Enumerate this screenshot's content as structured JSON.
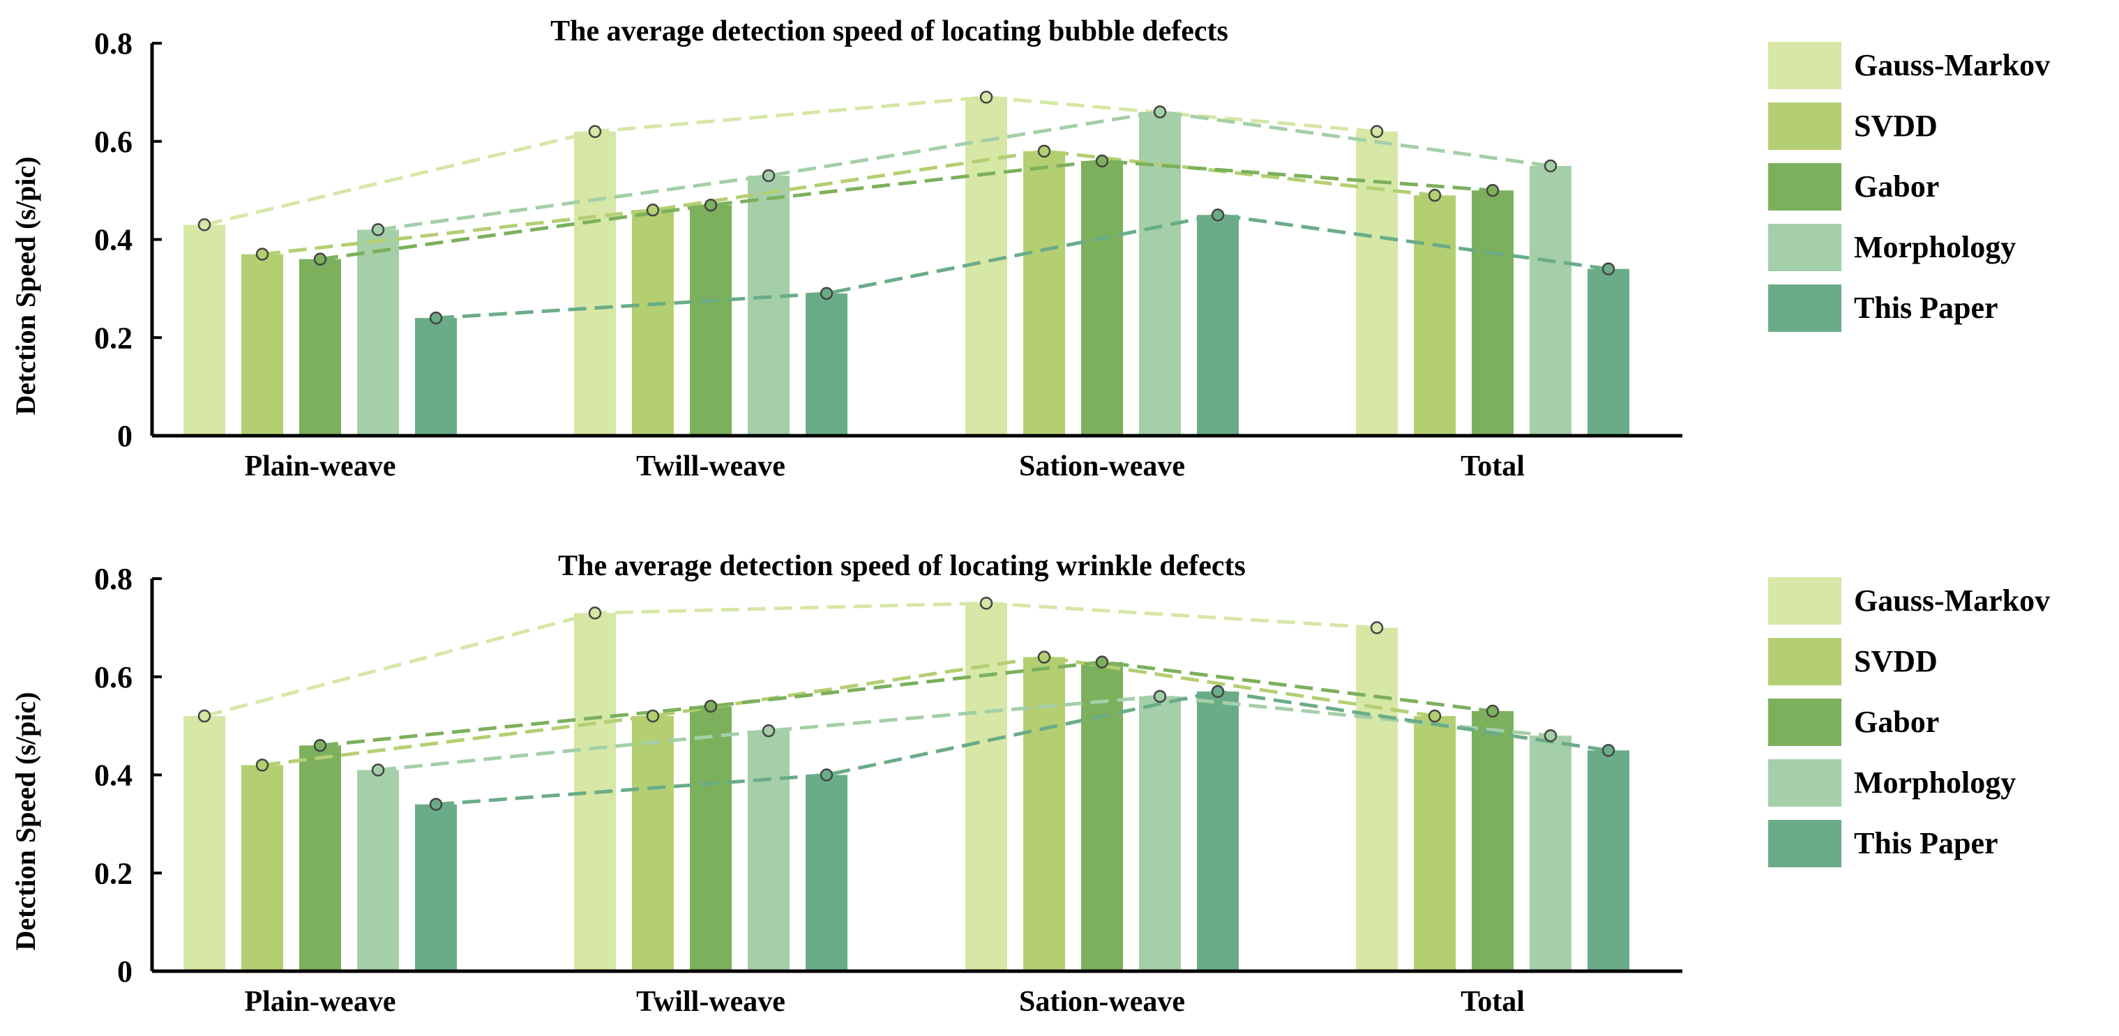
{
  "chart_data": [
    {
      "type": "bar",
      "title": "The average detection speed of locating bubble defects",
      "xlabel": "",
      "ylabel": "Detction Speed  (s/pic)",
      "ylim": [
        0,
        0.8
      ],
      "yticks": [
        0,
        0.2,
        0.4,
        0.6,
        0.8
      ],
      "ytick_labels": [
        "0",
        "0.2",
        "0.4",
        "0.6",
        "0.8"
      ],
      "categories": [
        "Plain-weave",
        "Twill-weave",
        "Sation-weave",
        "Total"
      ],
      "series": [
        {
          "name": "Gauss-Markov",
          "color": "#d6e7a6",
          "values": [
            0.43,
            0.62,
            0.69,
            0.62
          ]
        },
        {
          "name": "SVDD",
          "color": "#b4cf72",
          "values": [
            0.37,
            0.46,
            0.58,
            0.49
          ]
        },
        {
          "name": "Gabor",
          "color": "#7cb05c",
          "values": [
            0.36,
            0.47,
            0.56,
            0.5
          ]
        },
        {
          "name": "Morphology",
          "color": "#a4cfa8",
          "values": [
            0.42,
            0.53,
            0.66,
            0.55
          ]
        },
        {
          "name": "This Paper",
          "color": "#6aac88",
          "values": [
            0.24,
            0.29,
            0.45,
            0.34
          ]
        }
      ],
      "line_overlay": "dashed lines with circle markers connecting each series across categories",
      "legend_position": "right",
      "grid": false
    },
    {
      "type": "bar",
      "title": "The average detection speed of locating wrinkle defects",
      "xlabel": "",
      "ylabel": "Detction Speed  (s/pic)",
      "ylim": [
        0,
        0.8
      ],
      "yticks": [
        0,
        0.2,
        0.4,
        0.6,
        0.8
      ],
      "ytick_labels": [
        "0",
        "0.2",
        "0.4",
        "0.6",
        "0.8"
      ],
      "categories": [
        "Plain-weave",
        "Twill-weave",
        "Sation-weave",
        "Total"
      ],
      "series": [
        {
          "name": "Gauss-Markov",
          "color": "#d6e7a6",
          "values": [
            0.52,
            0.73,
            0.75,
            0.7
          ]
        },
        {
          "name": "SVDD",
          "color": "#b4cf72",
          "values": [
            0.42,
            0.52,
            0.64,
            0.52
          ]
        },
        {
          "name": "Gabor",
          "color": "#7cb05c",
          "values": [
            0.46,
            0.54,
            0.63,
            0.53
          ]
        },
        {
          "name": "Morphology",
          "color": "#a4cfa8",
          "values": [
            0.41,
            0.49,
            0.56,
            0.48
          ]
        },
        {
          "name": "This Paper",
          "color": "#6aac88",
          "values": [
            0.34,
            0.4,
            0.57,
            0.45
          ]
        }
      ],
      "line_overlay": "dashed lines with circle markers connecting each series across categories",
      "legend_position": "right",
      "grid": false
    }
  ]
}
